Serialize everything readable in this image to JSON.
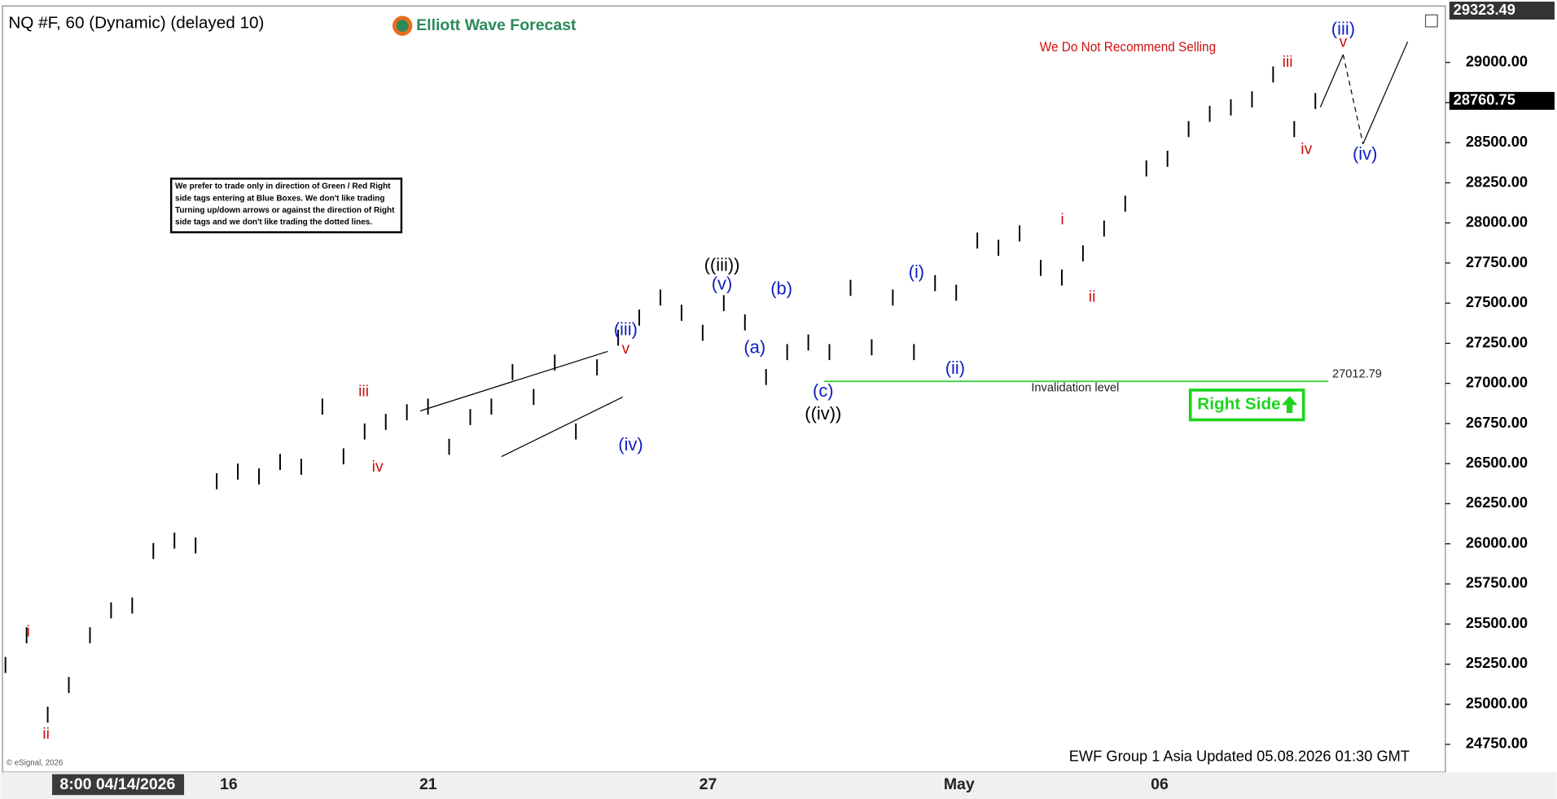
{
  "chart_data": {
    "type": "hlc_bars",
    "title": "NQ #F, 60 (Dynamic) (delayed 10)",
    "brand": "Elliott Wave Forecast",
    "warning": "We Do Not Recommend Selling",
    "note_lines": [
      "We prefer to trade only in direction of Green / Red Right",
      "side tags entering at Blue Boxes. We don't like trading",
      "Turning up/down arrows or against the direction of Right",
      "side tags and we don't like trading the dotted lines."
    ],
    "footer": "EWF Group 1 Asia Updated 05.08.2026 01:30 GMT",
    "copyright": "© eSignal, 2026",
    "categories": [
      "8:00 04/14/2026",
      "16",
      "21",
      "27",
      "May",
      "06"
    ],
    "ylim": [
      24595,
      29340
    ],
    "yticks": [
      {
        "value": 24750,
        "label": "24750.00"
      },
      {
        "value": 25000,
        "label": "25000.00"
      },
      {
        "value": 25250,
        "label": "25250.00"
      },
      {
        "value": 25500,
        "label": "25500.00"
      },
      {
        "value": 25750,
        "label": "25750.00"
      },
      {
        "value": 26000,
        "label": "26000.00"
      },
      {
        "value": 26250,
        "label": "26250.00"
      },
      {
        "value": 26500,
        "label": "26500.00"
      },
      {
        "value": 26750,
        "label": "26750.00"
      },
      {
        "value": 27000,
        "label": "27000.00"
      },
      {
        "value": 27250,
        "label": "27250.00"
      },
      {
        "value": 27500,
        "label": "27500.00"
      },
      {
        "value": 27750,
        "label": "27750.00"
      },
      {
        "value": 28000,
        "label": "28000.00"
      },
      {
        "value": 28250,
        "label": "28250.00"
      },
      {
        "value": 28500,
        "label": "28500.00"
      },
      {
        "value": 28750,
        "label": "28750.00"
      },
      {
        "value": 29000,
        "label": "29000.00"
      }
    ],
    "last_price": 28760.75,
    "top_price": 29323.49,
    "invalidation": {
      "value": 27012.79,
      "label": "Invalidation level",
      "color": "#3fcf3f"
    },
    "right_side": {
      "label": "Right Side",
      "color": "#1ed41e"
    },
    "bar_color": "#000000",
    "high": [
      25295,
      25480,
      24985,
      25170,
      25480,
      25635,
      25665,
      26005,
      26070,
      26040,
      26440,
      26500,
      26470,
      26560,
      26530,
      26905,
      26595,
      26750,
      26810,
      26870,
      26905,
      26655,
      26840,
      26905,
      27120,
      26965,
      27180,
      26750,
      27150,
      27335,
      27460,
      27585,
      27490,
      27365,
      27550,
      27430,
      27090,
      27245,
      27305,
      27245,
      27645,
      27275,
      27585,
      27245,
      27675,
      27615,
      27940,
      27895,
      27985,
      27770,
      27710,
      27860,
      28015,
      28170,
      28390,
      28450,
      28635,
      28730,
      28770,
      28820,
      28975,
      28635,
      28810
    ],
    "low": [
      25195,
      25380,
      24885,
      25070,
      25380,
      25535,
      25565,
      25905,
      25970,
      25940,
      26340,
      26400,
      26370,
      26460,
      26430,
      26805,
      26495,
      26650,
      26710,
      26770,
      26805,
      26555,
      26740,
      26805,
      27020,
      26865,
      27080,
      26650,
      27050,
      27235,
      27360,
      27485,
      27390,
      27265,
      27450,
      27330,
      26990,
      27145,
      27205,
      27145,
      27545,
      27175,
      27485,
      27145,
      27575,
      27515,
      27840,
      27795,
      27885,
      27670,
      27610,
      27760,
      27915,
      28070,
      28290,
      28350,
      28535,
      28630,
      28670,
      28720,
      28875,
      28535,
      28710
    ],
    "annotations": [
      {
        "text": "i",
        "color": "#d01010"
      },
      {
        "text": "ii",
        "color": "#d01010"
      },
      {
        "text": "iii",
        "color": "#d01010"
      },
      {
        "text": "iv",
        "color": "#d01010"
      },
      {
        "text": "(iii)",
        "color": "#1020c0"
      },
      {
        "text": "v",
        "color": "#d01010"
      },
      {
        "text": "(iv)",
        "color": "#1020c0"
      },
      {
        "text": "((iii))",
        "color": "#000000"
      },
      {
        "text": "(v)",
        "color": "#1020c0"
      },
      {
        "text": "(a)",
        "color": "#1020c0"
      },
      {
        "text": "(b)",
        "color": "#1020c0"
      },
      {
        "text": "(c)",
        "color": "#1020c0"
      },
      {
        "text": "((iv))",
        "color": "#000000"
      },
      {
        "text": "(i)",
        "color": "#1020c0"
      },
      {
        "text": "(ii)",
        "color": "#1020c0"
      },
      {
        "text": "i",
        "color": "#d01010"
      },
      {
        "text": "ii",
        "color": "#d01010"
      },
      {
        "text": "iii",
        "color": "#d01010"
      },
      {
        "text": "iv",
        "color": "#d01010"
      },
      {
        "text": "(iii)",
        "color": "#1020c0"
      },
      {
        "text": "v",
        "color": "#d01010"
      },
      {
        "text": "(iv)",
        "color": "#1020c0"
      }
    ]
  }
}
